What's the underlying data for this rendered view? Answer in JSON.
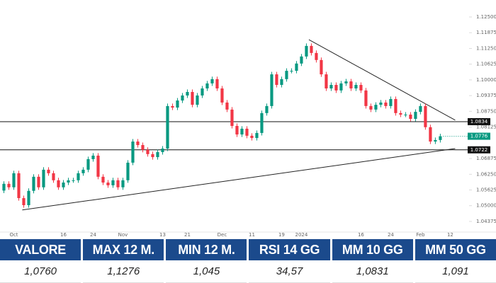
{
  "chart_data": {
    "type": "candlestick",
    "open": [
      1.056,
      1.0587,
      1.0573,
      1.0629,
      1.053,
      1.0502,
      1.0559,
      1.0615,
      1.0573,
      1.0643,
      1.0629,
      1.0601,
      1.0573,
      1.0592,
      1.0601,
      1.0601,
      1.0629,
      1.0643,
      1.0685,
      1.0699,
      1.0615,
      1.0592,
      1.0581,
      1.0601,
      1.0573,
      1.0601,
      1.0671,
      1.0755,
      1.0741,
      1.0722,
      1.0705,
      1.0693,
      1.0713,
      1.0727,
      1.0896,
      1.089,
      1.0918,
      1.0938,
      1.0952,
      1.0901,
      1.0938,
      1.0966,
      1.0986,
      1.1003,
      1.0966,
      1.091,
      1.0882,
      1.0817,
      1.0783,
      1.0806,
      1.0778,
      1.0769,
      1.0789,
      1.0868,
      1.0896,
      1.1022,
      1.098,
      1.1003,
      1.1036,
      1.1036,
      1.1065,
      1.1093,
      1.1135,
      1.1107,
      1.1079,
      1.1022,
      1.0966,
      1.098,
      1.0958,
      1.0986,
      1.0994,
      1.0966,
      1.098,
      1.0958,
      1.0896,
      1.0882,
      1.0901,
      1.091,
      1.0896,
      1.0924,
      1.0868,
      1.0862,
      1.0862,
      1.0845,
      1.0873,
      1.0896,
      1.0812,
      1.0755,
      1.0761
    ],
    "high": [
      1.0597,
      1.0597,
      1.0639,
      1.0639,
      1.054,
      1.0569,
      1.0625,
      1.0625,
      1.0653,
      1.0653,
      1.0639,
      1.0611,
      1.0602,
      1.0611,
      1.0611,
      1.0639,
      1.0653,
      1.0695,
      1.0709,
      1.0709,
      1.0625,
      1.0602,
      1.0611,
      1.0611,
      1.0611,
      1.0681,
      1.0765,
      1.0765,
      1.0751,
      1.0732,
      1.0715,
      1.0723,
      1.0737,
      1.0906,
      1.0906,
      1.0928,
      1.0948,
      1.0962,
      1.0962,
      1.0948,
      1.0976,
      1.0996,
      1.1013,
      1.1013,
      1.0976,
      1.092,
      1.0892,
      1.0827,
      1.0816,
      1.0816,
      1.0788,
      1.0799,
      1.0878,
      1.0906,
      1.1032,
      1.1032,
      1.1013,
      1.1046,
      1.1046,
      1.1075,
      1.1103,
      1.1145,
      1.1145,
      1.1117,
      1.1089,
      1.1032,
      1.099,
      1.099,
      1.0996,
      1.1004,
      1.1004,
      1.099,
      1.099,
      1.0968,
      1.0906,
      1.0911,
      1.092,
      1.092,
      1.0934,
      1.0934,
      1.0878,
      1.0872,
      1.0872,
      1.0883,
      1.0906,
      1.0906,
      1.0822,
      1.0771,
      1.0786
    ],
    "low": [
      1.055,
      1.0563,
      1.0563,
      1.052,
      1.0492,
      1.0492,
      1.0549,
      1.0563,
      1.0563,
      1.0619,
      1.0591,
      1.0563,
      1.0563,
      1.0582,
      1.0591,
      1.0591,
      1.0619,
      1.0633,
      1.0675,
      1.0605,
      1.0582,
      1.0571,
      1.0571,
      1.0563,
      1.0563,
      1.0591,
      1.0661,
      1.0731,
      1.0712,
      1.0695,
      1.0683,
      1.0683,
      1.0703,
      1.0717,
      1.088,
      1.088,
      1.0908,
      1.0928,
      1.0891,
      1.0891,
      1.0928,
      1.0956,
      1.0976,
      1.0956,
      1.09,
      1.0872,
      1.0807,
      1.0773,
      1.0773,
      1.0768,
      1.0759,
      1.0759,
      1.0779,
      1.0858,
      1.0886,
      1.097,
      1.097,
      1.0993,
      1.1026,
      1.1026,
      1.1055,
      1.1083,
      1.1097,
      1.1069,
      1.1012,
      1.0956,
      1.0956,
      1.0948,
      1.0948,
      1.0976,
      1.0956,
      1.0956,
      1.0948,
      1.0886,
      1.0872,
      1.0872,
      1.0891,
      1.0886,
      1.0886,
      1.0858,
      1.0852,
      1.0852,
      1.0835,
      1.0835,
      1.0863,
      1.0802,
      1.0745,
      1.0745,
      1.0751
    ],
    "close": [
      1.0587,
      1.0573,
      1.0629,
      1.053,
      1.0502,
      1.0559,
      1.0615,
      1.0573,
      1.0643,
      1.0629,
      1.0601,
      1.0573,
      1.0592,
      1.0601,
      1.0601,
      1.0629,
      1.0643,
      1.0685,
      1.0699,
      1.0615,
      1.0592,
      1.0581,
      1.0601,
      1.0573,
      1.0601,
      1.0671,
      1.0755,
      1.0741,
      1.0722,
      1.0705,
      1.0693,
      1.0713,
      1.0727,
      1.0896,
      1.089,
      1.0918,
      1.0938,
      1.0952,
      1.0901,
      1.0938,
      1.0966,
      1.0986,
      1.1003,
      1.0966,
      1.091,
      1.0882,
      1.0817,
      1.0783,
      1.0806,
      1.0778,
      1.0769,
      1.0789,
      1.0868,
      1.0896,
      1.1022,
      1.098,
      1.1003,
      1.1036,
      1.1036,
      1.1065,
      1.1093,
      1.1135,
      1.1107,
      1.1079,
      1.1022,
      1.0966,
      1.098,
      1.0958,
      1.0986,
      1.0994,
      1.0966,
      1.098,
      1.0958,
      1.0896,
      1.0882,
      1.0901,
      1.091,
      1.0896,
      1.0924,
      1.0868,
      1.0862,
      1.0862,
      1.0845,
      1.0873,
      1.0896,
      1.0812,
      1.0755,
      1.0761,
      1.0776
    ],
    "up_color": "#089981",
    "down_color": "#f23645",
    "xlim": [
      -0.5,
      92.8
    ],
    "xticks": [
      {
        "value": 2,
        "label": "Oct"
      },
      {
        "value": 12,
        "label": "16"
      },
      {
        "value": 18,
        "label": "24"
      },
      {
        "value": 24,
        "label": "Nov"
      },
      {
        "value": 32,
        "label": "13"
      },
      {
        "value": 37,
        "label": "21"
      },
      {
        "value": 44,
        "label": "Dec"
      },
      {
        "value": 50,
        "label": "11"
      },
      {
        "value": 56,
        "label": "19"
      },
      {
        "value": 60,
        "label": "2024"
      },
      {
        "value": 72,
        "label": "16"
      },
      {
        "value": 78,
        "label": "24"
      },
      {
        "value": 84,
        "label": "Feb"
      },
      {
        "value": 90,
        "label": "12"
      }
    ],
    "ylim": [
      1.0398,
      1.1295
    ],
    "yticks": [
      {
        "value": 1.125,
        "label": "1.12500"
      },
      {
        "value": 1.11875,
        "label": "1.11875"
      },
      {
        "value": 1.1125,
        "label": "1.11250"
      },
      {
        "value": 1.10625,
        "label": "1.10625"
      },
      {
        "value": 1.1,
        "label": "1.10000"
      },
      {
        "value": 1.09375,
        "label": "1.09375"
      },
      {
        "value": 1.0875,
        "label": "1.08750"
      },
      {
        "value": 1.08125,
        "label": "1.08125"
      },
      {
        "value": 1.06875,
        "label": "1.06875"
      },
      {
        "value": 1.0625,
        "label": "1.06250"
      },
      {
        "value": 1.05625,
        "label": "1.05625"
      },
      {
        "value": 1.05,
        "label": "1.05000"
      },
      {
        "value": 1.04375,
        "label": "1.04375"
      }
    ],
    "price_lines": [
      1.0834,
      1.0722
    ],
    "trendlines": [
      {
        "x": [
          61.5,
          91
        ],
        "y": [
          1.116,
          1.084
        ]
      },
      {
        "x": [
          3.7,
          91
        ],
        "y": [
          1.0483,
          1.0727
        ]
      }
    ],
    "grid": false
  },
  "table": {
    "header": [
      "VALORE",
      "MAX 12 M.",
      "MIN 12 M.",
      "RSI 14 GG",
      "MM 10 GG",
      "MM 50 GG"
    ],
    "rows": [
      [
        "1,0760",
        "1,1276",
        "1,045",
        "34,57",
        "1,0831",
        "1,091"
      ]
    ]
  }
}
